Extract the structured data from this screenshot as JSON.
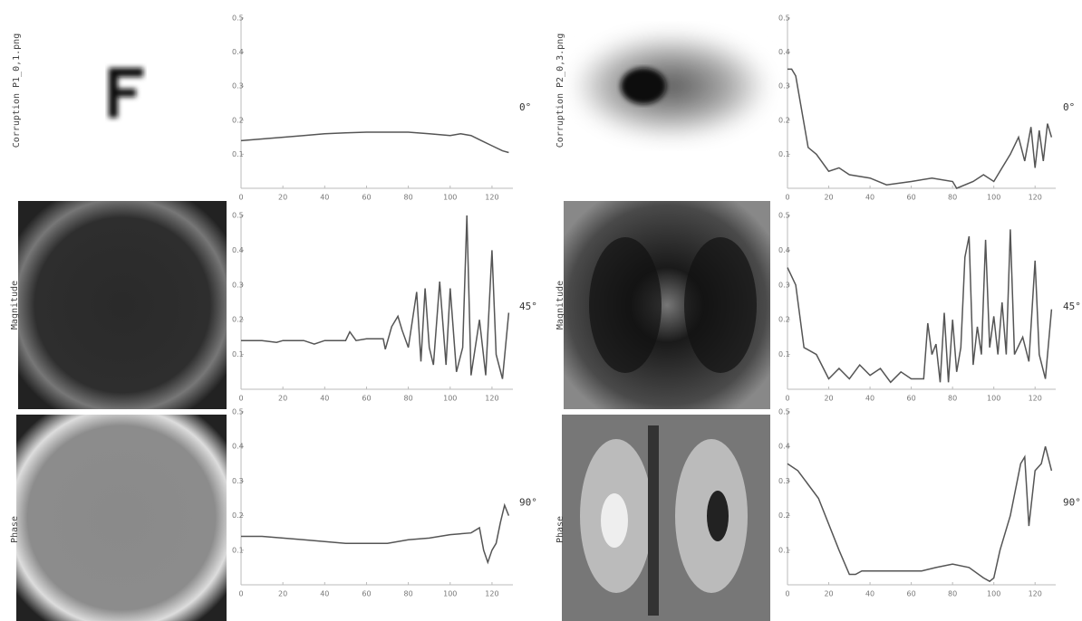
{
  "panels": [
    {
      "title": "Corruption P1_0,1.png",
      "magnitude_label": "Magnitude",
      "phase_label": "Phase"
    },
    {
      "title": "Corruption P2_0,3.png",
      "magnitude_label": "Magnitude",
      "phase_label": "Phase"
    }
  ],
  "chart_data": [
    {
      "type": "line",
      "annotation": "0°",
      "color": "#555555",
      "xlim": [
        0,
        130
      ],
      "ylim": [
        0,
        0.5
      ],
      "xticks": [
        0,
        20,
        40,
        60,
        80,
        100,
        120
      ],
      "yticks": [
        0.1,
        0.2,
        0.3,
        0.4,
        0.5
      ],
      "x": [
        0,
        10,
        20,
        30,
        40,
        50,
        60,
        70,
        80,
        90,
        100,
        105,
        110,
        115,
        120,
        125,
        128
      ],
      "values": [
        0.14,
        0.145,
        0.15,
        0.155,
        0.16,
        0.163,
        0.165,
        0.165,
        0.165,
        0.16,
        0.155,
        0.16,
        0.155,
        0.14,
        0.125,
        0.11,
        0.105
      ]
    },
    {
      "type": "line",
      "annotation": "45°",
      "color": "#555555",
      "xlim": [
        0,
        130
      ],
      "ylim": [
        0,
        0.5
      ],
      "xticks": [
        0,
        20,
        40,
        60,
        80,
        100,
        120
      ],
      "yticks": [
        0.1,
        0.2,
        0.3,
        0.4,
        0.5
      ],
      "x": [
        0,
        10,
        17,
        20,
        30,
        35,
        40,
        50,
        52,
        55,
        60,
        65,
        68,
        69,
        72,
        75,
        77,
        80,
        82,
        84,
        86,
        88,
        90,
        92,
        95,
        98,
        100,
        103,
        106,
        108,
        110,
        114,
        117,
        120,
        122,
        125,
        128
      ],
      "values": [
        0.14,
        0.14,
        0.135,
        0.14,
        0.14,
        0.13,
        0.14,
        0.14,
        0.165,
        0.14,
        0.145,
        0.145,
        0.145,
        0.115,
        0.18,
        0.21,
        0.17,
        0.12,
        0.2,
        0.28,
        0.08,
        0.29,
        0.12,
        0.07,
        0.31,
        0.07,
        0.29,
        0.05,
        0.12,
        0.5,
        0.04,
        0.2,
        0.04,
        0.4,
        0.1,
        0.03,
        0.22
      ]
    },
    {
      "type": "line",
      "annotation": "90°",
      "color": "#555555",
      "xlim": [
        0,
        130
      ],
      "ylim": [
        0,
        0.5
      ],
      "xticks": [
        0,
        20,
        40,
        60,
        80,
        100,
        120
      ],
      "yticks": [
        0.1,
        0.2,
        0.3,
        0.4,
        0.5
      ],
      "x": [
        0,
        10,
        20,
        30,
        40,
        50,
        60,
        70,
        80,
        90,
        100,
        110,
        114,
        116,
        118,
        120,
        122,
        124,
        126,
        128
      ],
      "values": [
        0.14,
        0.14,
        0.135,
        0.13,
        0.125,
        0.12,
        0.12,
        0.12,
        0.13,
        0.135,
        0.145,
        0.15,
        0.165,
        0.1,
        0.065,
        0.1,
        0.12,
        0.18,
        0.23,
        0.2
      ]
    },
    {
      "type": "line",
      "annotation": "0°",
      "color": "#555555",
      "xlim": [
        0,
        130
      ],
      "ylim": [
        0,
        0.5
      ],
      "xticks": [
        0,
        20,
        40,
        60,
        80,
        100,
        120
      ],
      "yticks": [
        0.1,
        0.2,
        0.3,
        0.4,
        0.5
      ],
      "x": [
        0,
        2,
        4,
        10,
        14,
        20,
        25,
        30,
        40,
        48,
        60,
        70,
        80,
        82,
        90,
        95,
        100,
        104,
        108,
        112,
        115,
        118,
        120,
        122,
        124,
        126,
        128
      ],
      "values": [
        0.35,
        0.35,
        0.33,
        0.12,
        0.1,
        0.05,
        0.06,
        0.04,
        0.03,
        0.01,
        0.02,
        0.03,
        0.02,
        0.0,
        0.02,
        0.04,
        0.02,
        0.06,
        0.1,
        0.15,
        0.08,
        0.18,
        0.06,
        0.17,
        0.08,
        0.19,
        0.15
      ]
    },
    {
      "type": "line",
      "annotation": "45°",
      "color": "#555555",
      "xlim": [
        0,
        130
      ],
      "ylim": [
        0,
        0.5
      ],
      "xticks": [
        0,
        20,
        40,
        60,
        80,
        100,
        120
      ],
      "yticks": [
        0.1,
        0.2,
        0.3,
        0.4,
        0.5
      ],
      "x": [
        0,
        4,
        8,
        14,
        20,
        25,
        30,
        35,
        40,
        45,
        50,
        55,
        60,
        66,
        68,
        70,
        72,
        74,
        76,
        78,
        80,
        82,
        84,
        86,
        88,
        90,
        92,
        94,
        96,
        98,
        100,
        102,
        104,
        106,
        108,
        110,
        114,
        117,
        120,
        122,
        125,
        128
      ],
      "values": [
        0.35,
        0.3,
        0.12,
        0.1,
        0.03,
        0.06,
        0.03,
        0.07,
        0.04,
        0.06,
        0.02,
        0.05,
        0.03,
        0.03,
        0.19,
        0.1,
        0.13,
        0.02,
        0.22,
        0.02,
        0.2,
        0.05,
        0.12,
        0.38,
        0.44,
        0.07,
        0.18,
        0.1,
        0.43,
        0.12,
        0.21,
        0.1,
        0.25,
        0.1,
        0.46,
        0.1,
        0.15,
        0.08,
        0.37,
        0.1,
        0.03,
        0.23
      ]
    },
    {
      "type": "line",
      "annotation": "90°",
      "color": "#555555",
      "xlim": [
        0,
        130
      ],
      "ylim": [
        0,
        0.5
      ],
      "xticks": [
        0,
        20,
        40,
        60,
        80,
        100,
        120
      ],
      "yticks": [
        0.1,
        0.2,
        0.3,
        0.4,
        0.5
      ],
      "x": [
        0,
        5,
        15,
        25,
        30,
        33,
        36,
        50,
        65,
        72,
        80,
        88,
        95,
        98,
        100,
        103,
        108,
        113,
        115,
        117,
        120,
        123,
        125,
        128
      ],
      "values": [
        0.35,
        0.33,
        0.25,
        0.1,
        0.03,
        0.03,
        0.04,
        0.04,
        0.04,
        0.05,
        0.06,
        0.05,
        0.02,
        0.01,
        0.02,
        0.1,
        0.2,
        0.35,
        0.37,
        0.17,
        0.33,
        0.35,
        0.4,
        0.33
      ]
    }
  ]
}
